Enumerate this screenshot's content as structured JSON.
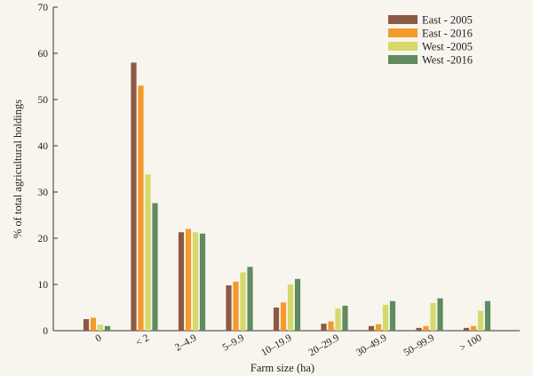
{
  "chart_data": {
    "type": "bar",
    "xlabel": "Farm size (ha)",
    "ylabel": "% of total agricultural holdings",
    "ylim": [
      0,
      70
    ],
    "yticks": [
      0,
      10,
      20,
      30,
      40,
      50,
      60,
      70
    ],
    "grid": false,
    "legend_position": "top-right",
    "categories": [
      "0",
      "< 2",
      "2–4.9",
      "5–9.9",
      "10–19.9",
      "20–29.9",
      "30–49.9",
      "50–99.9",
      "> 100"
    ],
    "series": [
      {
        "name": "East - 2005",
        "color": "#8b5a44",
        "values": [
          2.5,
          58,
          21.3,
          9.8,
          5,
          1.5,
          1,
          0.6,
          0.6
        ]
      },
      {
        "name": "East - 2016",
        "color": "#f39a2b",
        "values": [
          2.8,
          53,
          22,
          10.6,
          6.1,
          2,
          1.4,
          1,
          1
        ]
      },
      {
        "name": "West -2005",
        "color": "#d6d86a",
        "values": [
          1.3,
          33.8,
          21.3,
          12.6,
          10,
          4.8,
          5.6,
          6,
          4.3
        ]
      },
      {
        "name": "West -2016",
        "color": "#5f8b5e",
        "values": [
          1,
          27.6,
          21,
          13.8,
          11.2,
          5.4,
          6.4,
          7,
          6.4
        ]
      }
    ]
  }
}
